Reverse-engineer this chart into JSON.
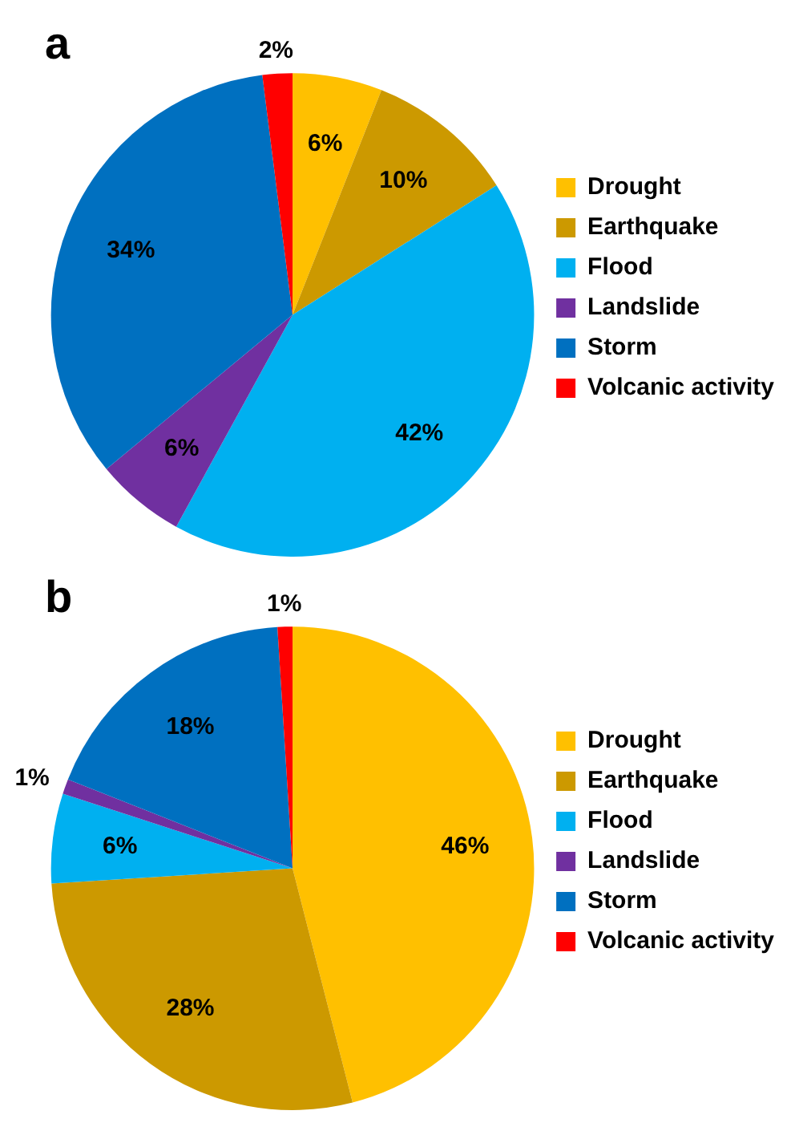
{
  "chart_data": [
    {
      "type": "pie",
      "title": "a",
      "categories": [
        "Drought",
        "Earthquake",
        "Flood",
        "Landslide",
        "Storm",
        "Volcanic activity"
      ],
      "values": [
        6,
        10,
        42,
        6,
        34,
        2
      ],
      "colors": [
        "#ffc000",
        "#cc9900",
        "#00b0f0",
        "#7030a0",
        "#0070c0",
        "#ff0000"
      ],
      "value_labels": [
        "6%",
        "10%",
        "42%",
        "6%",
        "34%",
        "2%"
      ],
      "legend": "right"
    },
    {
      "type": "pie",
      "title": "b",
      "categories": [
        "Drought",
        "Earthquake",
        "Flood",
        "Landslide",
        "Storm",
        "Volcanic activity"
      ],
      "values": [
        46,
        28,
        6,
        1,
        18,
        1
      ],
      "colors": [
        "#ffc000",
        "#cc9900",
        "#00b0f0",
        "#7030a0",
        "#0070c0",
        "#ff0000"
      ],
      "value_labels": [
        "46%",
        "28%",
        "6%",
        "1%",
        "18%",
        "1%"
      ],
      "legend": "right"
    }
  ]
}
